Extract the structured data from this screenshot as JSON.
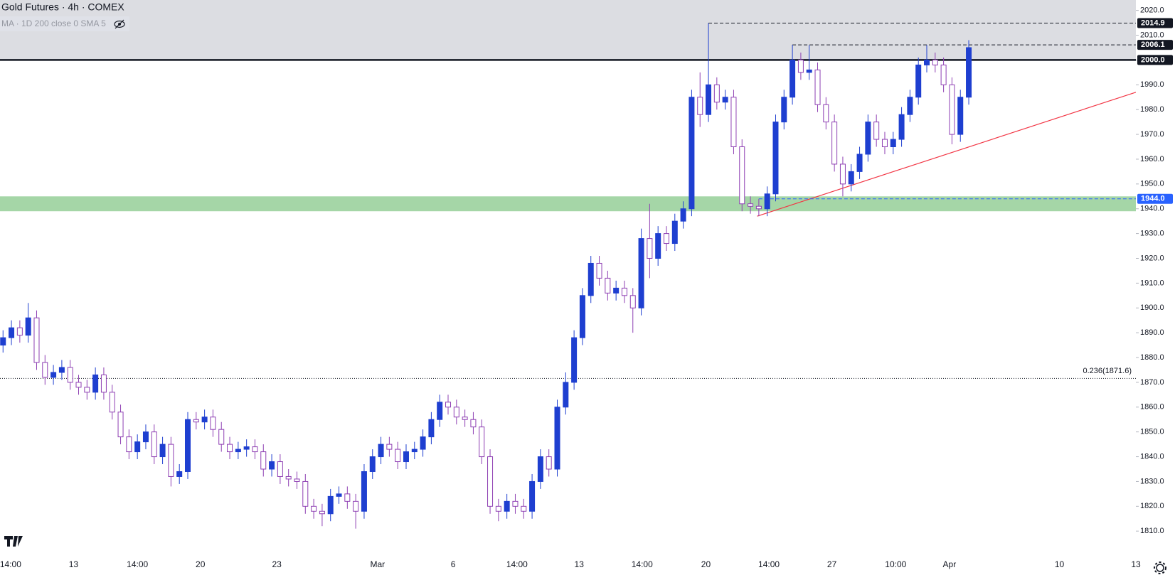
{
  "chart_data": {
    "type": "candlestick",
    "title": "Gold Futures · 4h · COMEX",
    "indicator": "MA · 1D 200 close 0 SMA 5",
    "up_color": "#1e3fd0",
    "down_color": "#8e3fb3",
    "open": [
      1885,
      1888,
      1892,
      1889,
      1896,
      1878,
      1872,
      1874,
      1876,
      1870,
      1868,
      1866,
      1873,
      1866,
      1858,
      1848,
      1842,
      1846,
      1850,
      1840,
      1845,
      1832,
      1834,
      1855,
      1854,
      1856,
      1851,
      1845,
      1842,
      1843,
      1844,
      1842,
      1835,
      1838,
      1832,
      1831,
      1830,
      1820,
      1818,
      1817,
      1824,
      1825,
      1822,
      1818,
      1834,
      1840,
      1845,
      1843,
      1838,
      1842,
      1843,
      1848,
      1855,
      1862,
      1860,
      1856,
      1855,
      1852,
      1840,
      1820,
      1818,
      1822,
      1820,
      1818,
      1830,
      1840,
      1835,
      1860,
      1870,
      1888,
      1905,
      1918,
      1912,
      1906,
      1908,
      1905,
      1900,
      1928,
      1920,
      1930,
      1926,
      1935,
      1940,
      1985,
      1978,
      1990,
      1983,
      1985,
      1965,
      1942,
      1941,
      1940,
      1946,
      1975,
      1985,
      2000,
      1995,
      1996,
      1982,
      1975,
      1958,
      1950,
      1955,
      1962,
      1975,
      1968,
      1965,
      1968,
      1978,
      1985,
      1998,
      2000,
      1998,
      1990,
      1970,
      1985
    ],
    "high": [
      1891,
      1895,
      1895,
      1902,
      1899,
      1881,
      1877,
      1879,
      1879,
      1873,
      1871,
      1876,
      1876,
      1869,
      1861,
      1851,
      1849,
      1853,
      1853,
      1848,
      1848,
      1837,
      1858,
      1858,
      1859,
      1859,
      1854,
      1848,
      1846,
      1847,
      1847,
      1845,
      1841,
      1841,
      1835,
      1834,
      1833,
      1823,
      1821,
      1827,
      1828,
      1828,
      1825,
      1837,
      1843,
      1848,
      1848,
      1846,
      1845,
      1846,
      1851,
      1858,
      1865,
      1865,
      1863,
      1859,
      1858,
      1855,
      1843,
      1823,
      1825,
      1825,
      1823,
      1833,
      1843,
      1843,
      1863,
      1874,
      1891,
      1908,
      1921,
      1921,
      1915,
      1911,
      1911,
      1908,
      1932,
      1942,
      1933,
      1933,
      1938,
      1943,
      1988,
      1995,
      2014.9,
      1993,
      1988,
      1988,
      1968,
      1945,
      1944,
      1949,
      1978,
      1988,
      2006.1,
      2003,
      2006,
      1999,
      1985,
      1978,
      1961,
      1958,
      1965,
      1978,
      1978,
      1971,
      1971,
      1981,
      1988,
      2001,
      2006,
      2003,
      2001,
      1993,
      1988,
      2008
    ],
    "low": [
      1882,
      1885,
      1886,
      1886,
      1875,
      1869,
      1869,
      1871,
      1867,
      1865,
      1863,
      1863,
      1863,
      1855,
      1845,
      1839,
      1839,
      1843,
      1837,
      1837,
      1828,
      1829,
      1831,
      1851,
      1851,
      1848,
      1842,
      1839,
      1839,
      1840,
      1839,
      1832,
      1832,
      1829,
      1828,
      1827,
      1817,
      1815,
      1812,
      1814,
      1821,
      1819,
      1811,
      1815,
      1831,
      1837,
      1840,
      1835,
      1835,
      1839,
      1840,
      1845,
      1852,
      1857,
      1853,
      1852,
      1849,
      1837,
      1817,
      1814,
      1815,
      1817,
      1815,
      1815,
      1827,
      1832,
      1832,
      1857,
      1867,
      1885,
      1902,
      1909,
      1903,
      1903,
      1902,
      1890,
      1897,
      1912,
      1917,
      1923,
      1923,
      1932,
      1937,
      1973,
      1975,
      1980,
      1980,
      1962,
      1939,
      1938,
      1937,
      1937,
      1943,
      1972,
      1982,
      1992,
      1992,
      1979,
      1972,
      1955,
      1945,
      1947,
      1952,
      1959,
      1965,
      1962,
      1962,
      1965,
      1975,
      1982,
      1995,
      1995,
      1987,
      1966,
      1967,
      1982
    ],
    "close": [
      1888,
      1892,
      1889,
      1896,
      1878,
      1872,
      1874,
      1876,
      1870,
      1868,
      1866,
      1873,
      1866,
      1858,
      1848,
      1842,
      1846,
      1850,
      1840,
      1845,
      1832,
      1834,
      1855,
      1854,
      1856,
      1851,
      1845,
      1842,
      1843,
      1844,
      1842,
      1835,
      1838,
      1832,
      1831,
      1830,
      1820,
      1818,
      1817,
      1824,
      1825,
      1822,
      1818,
      1834,
      1840,
      1845,
      1843,
      1838,
      1842,
      1843,
      1848,
      1855,
      1862,
      1860,
      1856,
      1855,
      1852,
      1840,
      1820,
      1818,
      1822,
      1820,
      1818,
      1830,
      1840,
      1835,
      1860,
      1870,
      1888,
      1905,
      1918,
      1912,
      1906,
      1908,
      1905,
      1900,
      1928,
      1920,
      1930,
      1926,
      1935,
      1940,
      1985,
      1978,
      1990,
      1983,
      1985,
      1965,
      1942,
      1941,
      1940,
      1946,
      1975,
      1985,
      2000,
      1995,
      1996,
      1982,
      1975,
      1958,
      1950,
      1955,
      1962,
      1975,
      1968,
      1965,
      1968,
      1978,
      1985,
      1998,
      2000,
      1998,
      1990,
      1970,
      1985,
      2005
    ],
    "xlim": [
      -0.36,
      134.9
    ],
    "xticks": [
      {
        "value": 0.9,
        "label": "14:00"
      },
      {
        "value": 8.4,
        "label": "13"
      },
      {
        "value": 16,
        "label": "14:00"
      },
      {
        "value": 23.5,
        "label": "20"
      },
      {
        "value": 32.6,
        "label": "23"
      },
      {
        "value": 44.6,
        "label": "Mar"
      },
      {
        "value": 53.6,
        "label": "6"
      },
      {
        "value": 61.2,
        "label": "14:00"
      },
      {
        "value": 68.6,
        "label": "13"
      },
      {
        "value": 76.1,
        "label": "14:00"
      },
      {
        "value": 83.7,
        "label": "20"
      },
      {
        "value": 91.2,
        "label": "14:00"
      },
      {
        "value": 98.7,
        "label": "27"
      },
      {
        "value": 106.3,
        "label": "10:00"
      },
      {
        "value": 112.7,
        "label": "Apr"
      },
      {
        "value": 125.8,
        "label": "10"
      },
      {
        "value": 134.9,
        "label": "13"
      }
    ],
    "ylim": [
      1800.6,
      2024.2
    ],
    "yticks": [
      {
        "value": 1810,
        "label": "1810.0"
      },
      {
        "value": 1820,
        "label": "1820.0"
      },
      {
        "value": 1830,
        "label": "1830.0"
      },
      {
        "value": 1840,
        "label": "1840.0"
      },
      {
        "value": 1850,
        "label": "1850.0"
      },
      {
        "value": 1860,
        "label": "1860.0"
      },
      {
        "value": 1870,
        "label": "1870.0"
      },
      {
        "value": 1880,
        "label": "1880.0"
      },
      {
        "value": 1890,
        "label": "1890.0"
      },
      {
        "value": 1900,
        "label": "1900.0"
      },
      {
        "value": 1910,
        "label": "1910.0"
      },
      {
        "value": 1920,
        "label": "1920.0"
      },
      {
        "value": 1930,
        "label": "1930.0"
      },
      {
        "value": 1940,
        "label": "1940.0"
      },
      {
        "value": 1950,
        "label": "1950.0"
      },
      {
        "value": 1960,
        "label": "1960.0"
      },
      {
        "value": 1970,
        "label": "1970.0"
      },
      {
        "value": 1980,
        "label": "1980.0"
      },
      {
        "value": 1990,
        "label": "1990.0"
      },
      {
        "value": 2000,
        "label": "2000.0"
      },
      {
        "value": 2010,
        "label": "2010.0"
      },
      {
        "value": 2020,
        "label": "2020.0"
      }
    ],
    "zones": [
      {
        "from": 2000,
        "to": 2025,
        "color": "#dcdde2"
      },
      {
        "from": 1939,
        "to": 1945,
        "color": "#a5d6a7"
      }
    ],
    "levels": [
      {
        "value": 2014.9,
        "label": "2014.9",
        "style": "dashed",
        "color": "#131722"
      },
      {
        "value": 2006.1,
        "label": "2006.1",
        "style": "dashed",
        "color": "#131722"
      },
      {
        "value": 2000,
        "label": "2000.0",
        "style": "solid",
        "color": "#131722"
      },
      {
        "value": 1944,
        "label": "1944.0",
        "style": "dashed",
        "color": "#2962ff"
      }
    ],
    "fib": {
      "value": 1871.6,
      "label": "0.236(1871.6)"
    },
    "trendline": {
      "color": "#f23645",
      "from": [
        89.8,
        1937
      ],
      "to": [
        134.9,
        1987
      ]
    }
  }
}
